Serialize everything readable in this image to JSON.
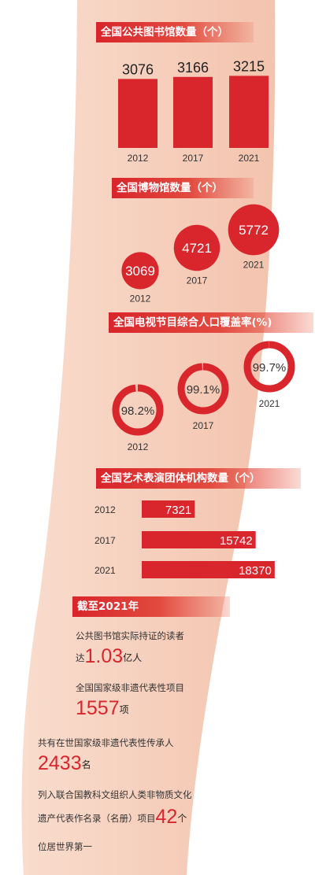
{
  "colors": {
    "accent": "#d9262c",
    "band": "#f7d8c8",
    "track": "#f5b8a8"
  },
  "chart_data": [
    {
      "type": "bar",
      "title": "全国公共图书馆数量（个）",
      "categories": [
        "2012",
        "2017",
        "2021"
      ],
      "values": [
        3076,
        3166,
        3215
      ]
    },
    {
      "type": "scatter",
      "title": "全国博物馆数量（个）",
      "categories": [
        "2012",
        "2017",
        "2021"
      ],
      "values": [
        3069,
        4721,
        5772
      ]
    },
    {
      "type": "pie",
      "title": "全国电视节目综合人口覆盖率(%)",
      "categories": [
        "2012",
        "2017",
        "2021"
      ],
      "values": [
        98.2,
        99.1,
        99.7
      ],
      "value_labels": [
        "98.2%",
        "99.1%",
        "99.7%"
      ]
    },
    {
      "type": "bar",
      "orientation": "horizontal",
      "title": "全国艺术表演团体机构数量（个）",
      "categories": [
        "2012",
        "2017",
        "2021"
      ],
      "values": [
        7321,
        15742,
        18370
      ]
    }
  ],
  "summary": {
    "header": "截至2021年",
    "item1": {
      "line1": "公共图书馆实际持证的读者",
      "prefix": "达",
      "value": "1.03",
      "unit": "亿人"
    },
    "item2": {
      "line1": "全国国家级非遗代表性项目",
      "value": "1557",
      "unit": "项"
    },
    "item3": {
      "line1": "共有在世国家级非遗代表性传承人",
      "value": "2433",
      "unit": "名"
    },
    "item4": {
      "line1": "列入联合国教科文组织人类非物质文化",
      "line2_prefix": "遗产代表作名录（名册）项目",
      "value": "42",
      "unit": "个",
      "line3": "位居世界第一"
    }
  }
}
